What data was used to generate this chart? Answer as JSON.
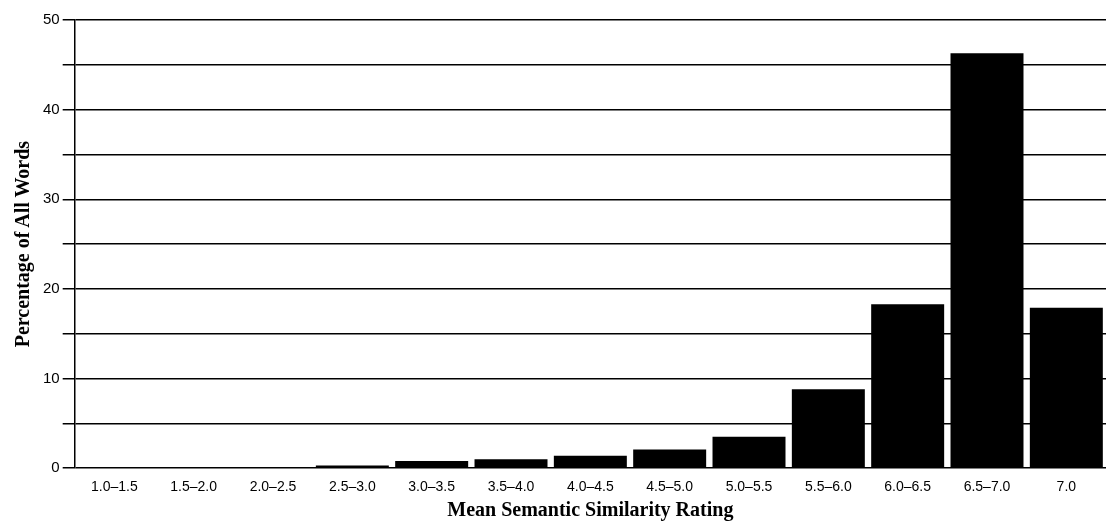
{
  "chart_data": {
    "type": "bar",
    "xlabel": "Mean Semantic Similarity Rating",
    "ylabel": "Percentage of All Words",
    "categories": [
      "1.0–1.5",
      "1.5–2.0",
      "2.0–2.5",
      "2.5–3.0",
      "3.0–3.5",
      "3.5–4.0",
      "4.0–4.5",
      "4.5–5.0",
      "5.0–5.5",
      "5.5–6.0",
      "6.0–6.5",
      "6.5–7.0",
      "7.0"
    ],
    "values": [
      0,
      0,
      0,
      0.3,
      0.8,
      1.0,
      1.4,
      2.1,
      3.5,
      8.8,
      18.3,
      46.3,
      17.9
    ],
    "color": "#000000",
    "ylim": [
      0,
      50
    ],
    "yticks": [
      0,
      {
        "value": 5,
        "label": null
      },
      10,
      {
        "value": 15,
        "label": null
      },
      20,
      {
        "value": 25,
        "label": null
      },
      30,
      {
        "value": 35,
        "label": null
      },
      40,
      {
        "value": 45,
        "label": null
      },
      50
    ],
    "grid": "y",
    "legend": false
  }
}
